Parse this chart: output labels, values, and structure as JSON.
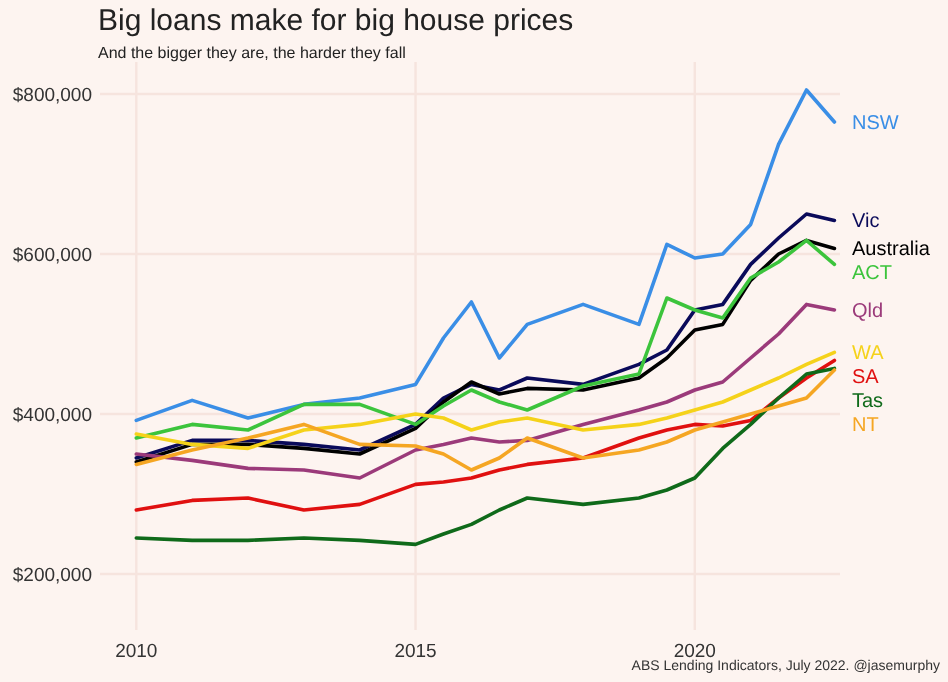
{
  "chart_data": {
    "type": "line",
    "title": "Big loans make for big house prices",
    "subtitle": "And the bigger they are, the harder they fall",
    "annotations": [
      "ABS Lending Indicators, July 2022. @jasemurphy"
    ],
    "x": [
      2010,
      2011,
      2012,
      2013,
      2014,
      2015,
      2015.5,
      2016,
      2016.5,
      2017,
      2018,
      2019,
      2019.5,
      2020,
      2020.5,
      2021,
      2021.5,
      2022,
      2022.5
    ],
    "xlim": [
      2009.35,
      2022.6
    ],
    "xticks": [
      2010,
      2015,
      2020
    ],
    "ylim": [
      130000,
      840000
    ],
    "yticks": [
      {
        "value": 200000,
        "label": "$200,000"
      },
      {
        "value": 400000,
        "label": "$400,000"
      },
      {
        "value": 600000,
        "label": "$600,000"
      },
      {
        "value": 800000,
        "label": "$800,000"
      }
    ],
    "grid": true,
    "series": [
      {
        "name": "NSW",
        "color": "#3a8ee6",
        "values": [
          392000,
          417000,
          395000,
          412000,
          420000,
          437000,
          495000,
          540000,
          470000,
          512000,
          537000,
          512000,
          612000,
          595000,
          600000,
          637000,
          737000,
          805000,
          765000
        ]
      },
      {
        "name": "Vic",
        "color": "#0a0a5a",
        "values": [
          345000,
          367000,
          367000,
          362000,
          355000,
          387000,
          420000,
          437000,
          430000,
          445000,
          437000,
          462000,
          480000,
          530000,
          537000,
          587000,
          620000,
          650000,
          642000
        ]
      },
      {
        "name": "Australia",
        "color": "#000000",
        "values": [
          340000,
          362000,
          362000,
          357000,
          350000,
          382000,
          415000,
          440000,
          425000,
          432000,
          430000,
          445000,
          470000,
          505000,
          512000,
          567000,
          600000,
          617000,
          607000
        ]
      },
      {
        "name": "ACT",
        "color": "#3cc43c",
        "values": [
          370000,
          387000,
          380000,
          412000,
          412000,
          387000,
          410000,
          430000,
          415000,
          405000,
          435000,
          450000,
          545000,
          530000,
          520000,
          570000,
          590000,
          617000,
          587000
        ]
      },
      {
        "name": "Qld",
        "color": "#9b3a7a",
        "values": [
          350000,
          342000,
          332000,
          330000,
          320000,
          355000,
          362000,
          370000,
          365000,
          367000,
          387000,
          405000,
          415000,
          430000,
          440000,
          470000,
          500000,
          537000,
          530000
        ]
      },
      {
        "name": "WA",
        "color": "#f5d21a",
        "values": [
          375000,
          362000,
          357000,
          380000,
          387000,
          400000,
          395000,
          380000,
          390000,
          395000,
          380000,
          387000,
          395000,
          405000,
          415000,
          430000,
          445000,
          462000,
          477000
        ]
      },
      {
        "name": "SA",
        "color": "#e01010",
        "values": [
          280000,
          292000,
          295000,
          280000,
          287000,
          312000,
          315000,
          320000,
          330000,
          337000,
          345000,
          370000,
          380000,
          387000,
          385000,
          392000,
          420000,
          445000,
          467000
        ]
      },
      {
        "name": "Tas",
        "color": "#0f6a1a",
        "values": [
          245000,
          242000,
          242000,
          245000,
          242000,
          237000,
          250000,
          262000,
          280000,
          295000,
          287000,
          295000,
          305000,
          320000,
          357000,
          387000,
          420000,
          450000,
          457000
        ]
      },
      {
        "name": "NT",
        "color": "#f5a623",
        "values": [
          337000,
          355000,
          370000,
          387000,
          362000,
          360000,
          350000,
          330000,
          345000,
          370000,
          345000,
          355000,
          365000,
          380000,
          390000,
          400000,
          410000,
          420000,
          455000
        ]
      }
    ]
  }
}
